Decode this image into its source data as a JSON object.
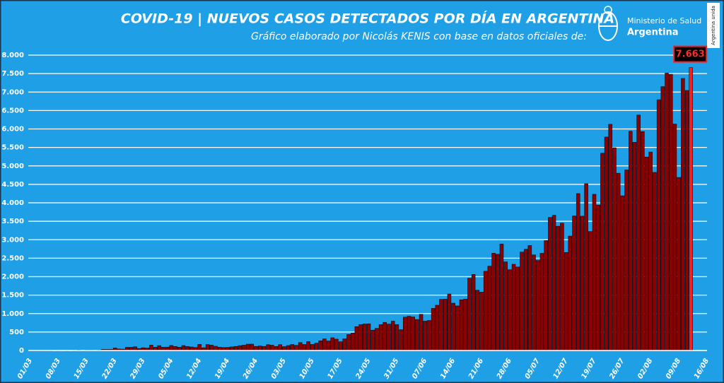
{
  "chart_data": {
    "type": "bar",
    "title": "COVID-19  |  NUEVOS CASOS DETECTADOS POR DÍA EN ARGENTINA",
    "subtitle": "Gráfico elaborado por Nicolás KENIS con base en datos oficiales de:",
    "source": {
      "line1": "Ministerio de Salud",
      "line2": "Argentina",
      "badge": "Argentina unida"
    },
    "categories": [
      "01/03",
      null,
      null,
      null,
      null,
      null,
      null,
      "08/03",
      null,
      null,
      null,
      null,
      null,
      null,
      "15/03",
      null,
      null,
      null,
      null,
      null,
      null,
      "22/03",
      null,
      null,
      null,
      null,
      null,
      null,
      "29/03",
      null,
      null,
      null,
      null,
      null,
      null,
      "05/04",
      null,
      null,
      null,
      null,
      null,
      null,
      "12/04",
      null,
      null,
      null,
      null,
      null,
      null,
      "19/04",
      null,
      null,
      null,
      null,
      null,
      null,
      "26/04",
      null,
      null,
      null,
      null,
      null,
      null,
      "03/05",
      null,
      null,
      null,
      null,
      null,
      null,
      "10/05",
      null,
      null,
      null,
      null,
      null,
      null,
      "17/05",
      null,
      null,
      null,
      null,
      null,
      null,
      "24/05",
      null,
      null,
      null,
      null,
      null,
      null,
      "31/05",
      null,
      null,
      null,
      null,
      null,
      null,
      "07/06",
      null,
      null,
      null,
      null,
      null,
      null,
      "14/06",
      null,
      null,
      null,
      null,
      null,
      null,
      "21/06",
      null,
      null,
      null,
      null,
      null,
      null,
      "28/06",
      null,
      null,
      null,
      null,
      null,
      null,
      "05/07",
      null,
      null,
      null,
      null,
      null,
      null,
      "12/07",
      null,
      null,
      null,
      null,
      null,
      null,
      "19/07",
      null,
      null,
      null,
      null,
      null,
      null,
      "26/07",
      null,
      null,
      null,
      null,
      null,
      null,
      "02/08",
      null,
      null,
      null,
      null,
      null,
      null,
      "09/08",
      null,
      null,
      null,
      null,
      null,
      null,
      "16/08"
    ],
    "values": [
      0,
      0,
      1,
      0,
      0,
      1,
      6,
      2,
      4,
      2,
      5,
      2,
      12,
      3,
      11,
      11,
      9,
      14,
      31,
      30,
      30,
      67,
      41,
      36,
      86,
      87,
      101,
      55,
      75,
      66,
      146,
      88,
      132,
      90,
      93,
      136,
      110,
      90,
      134,
      109,
      96,
      81,
      167,
      75,
      162,
      145,
      115,
      91,
      81,
      86,
      98,
      111,
      132,
      144,
      172,
      173,
      111,
      124,
      111,
      158,
      144,
      111,
      158,
      105,
      135,
      165,
      141,
      214,
      163,
      240,
      165,
      199,
      263,
      316,
      258,
      345,
      308,
      238,
      316,
      436,
      474,
      647,
      704,
      718,
      723,
      552,
      600,
      703,
      762,
      716,
      795,
      704,
      564,
      904,
      929,
      909,
      840,
      983,
      795,
      815,
      1141,
      1226,
      1386,
      1391,
      1531,
      1282,
      1208,
      1374,
      1393,
      1958,
      2060,
      1634,
      1581,
      2146,
      2285,
      2635,
      2606,
      2886,
      2401,
      2189,
      2335,
      2262,
      2667,
      2744,
      2845,
      2590,
      2439,
      2632,
      2979,
      3604,
      3663,
      3367,
      3449,
      2657,
      3099,
      3645,
      4250,
      3638,
      4518,
      3223,
      4231,
      3937,
      5344,
      5782,
      6127,
      5493,
      4802,
      4190,
      4890,
      5939,
      5641,
      6377,
      5929,
      5241,
      5376,
      4824,
      6792,
      7147,
      7513,
      7482,
      6134,
      4688,
      7369,
      7043,
      7663,
      null,
      null,
      null,
      null
    ],
    "value_labels": [
      null,
      null,
      null,
      null,
      null,
      null,
      null,
      null,
      null,
      null,
      null,
      null,
      null,
      null,
      null,
      null,
      null,
      null,
      null,
      null,
      null,
      null,
      null,
      null,
      null,
      null,
      null,
      null,
      null,
      null,
      null,
      null,
      null,
      null,
      null,
      null,
      null,
      null,
      null,
      null,
      null,
      null,
      null,
      null,
      null,
      null,
      null,
      null,
      null,
      null,
      null,
      null,
      null,
      null,
      null,
      null,
      null,
      null,
      null,
      null,
      null,
      null,
      null,
      null,
      null,
      null,
      null,
      null,
      null,
      null,
      null,
      null,
      null,
      null,
      null,
      null,
      null,
      null,
      null,
      null,
      null,
      null,
      null,
      null,
      null,
      null,
      null,
      null,
      null,
      null,
      null,
      null,
      null,
      null,
      null,
      null,
      null,
      null,
      null,
      null,
      null,
      null,
      null,
      null,
      null,
      null,
      null,
      null,
      null,
      null,
      null,
      null,
      null,
      null,
      null,
      null,
      null,
      null,
      null,
      null,
      null,
      null,
      null,
      null,
      null,
      null,
      null,
      null,
      null,
      null,
      null,
      null,
      null,
      null,
      null,
      null,
      null,
      null,
      null,
      null,
      null,
      null,
      null,
      null,
      null,
      null,
      null,
      null,
      null,
      null,
      null,
      null,
      null,
      null,
      null,
      null,
      null,
      null,
      null,
      null,
      null,
      null,
      null,
      null,
      "7.663",
      null,
      null,
      null,
      null
    ],
    "color": "#8b0000",
    "highlight_color": "#ff1c1c",
    "ylim": [
      0,
      8000
    ],
    "yticks": [
      0,
      500,
      {
        "value": 1000,
        "label": "1.000"
      },
      {
        "value": 1500,
        "label": "1.500"
      },
      {
        "value": 2000,
        "label": "2.000"
      },
      {
        "value": 2500,
        "label": "2.500"
      },
      {
        "value": 3000,
        "label": "3.000"
      },
      {
        "value": 3500,
        "label": "3.500"
      },
      {
        "value": 4000,
        "label": "4.000"
      },
      {
        "value": 4500,
        "label": "4.500"
      },
      {
        "value": 5000,
        "label": "5.000"
      },
      {
        "value": 5500,
        "label": "5.500"
      },
      {
        "value": 6000,
        "label": "6.000"
      },
      {
        "value": 6500,
        "label": "6.500"
      },
      {
        "value": 7000,
        "label": "7.000"
      },
      {
        "value": 7500,
        "label": "7.500"
      },
      {
        "value": 8000,
        "label": "8.000"
      }
    ],
    "grid": true
  }
}
